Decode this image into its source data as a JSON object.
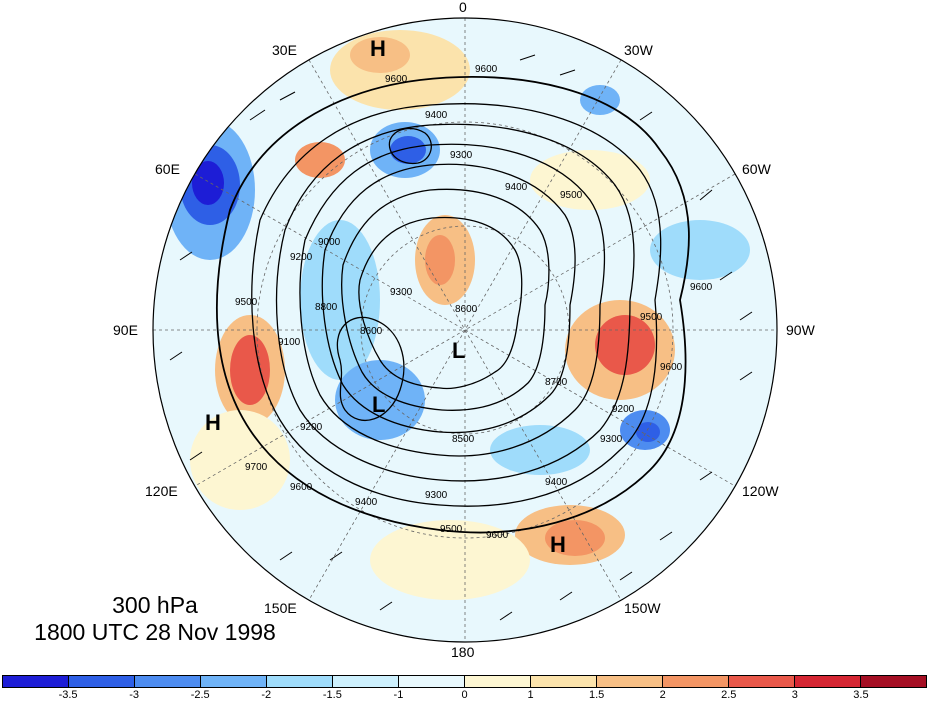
{
  "caption": {
    "level": "300 hPa",
    "time": "1800 UTC 28 Nov 1998"
  },
  "longitude_labels": [
    "0",
    "30W",
    "60W",
    "90W",
    "120W",
    "150W",
    "180",
    "150E",
    "120E",
    "90E",
    "60E",
    "30E"
  ],
  "pressure_systems": [
    {
      "type": "H",
      "region": "north-upper-left"
    },
    {
      "type": "H",
      "region": "left"
    },
    {
      "type": "H",
      "region": "lower-right"
    },
    {
      "type": "L",
      "region": "center"
    },
    {
      "type": "L",
      "region": "center-left"
    }
  ],
  "contour_labels": [
    "9600",
    "9600",
    "9400",
    "9300",
    "9500",
    "9400",
    "9200",
    "9000",
    "8800",
    "8600",
    "8700",
    "8500",
    "9300",
    "9400",
    "9500",
    "9600",
    "9100",
    "9300",
    "9600",
    "9200",
    "9500",
    "9600",
    "9400",
    "9500",
    "9700",
    "9600",
    "8600",
    "9200",
    "9300"
  ],
  "colorbar": {
    "tick_labels": [
      "-3.5",
      "-3",
      "-2.5",
      "-2",
      "-1.5",
      "-1",
      "0",
      "1",
      "1.5",
      "2",
      "2.5",
      "3",
      "3.5"
    ],
    "colors": [
      "#1d1dd6",
      "#2e5fe6",
      "#4d8cf0",
      "#6fb3f7",
      "#9fdcfb",
      "#cdf0fd",
      "#e8f8fd",
      "#fdf6d2",
      "#fbe3ac",
      "#f7bf85",
      "#f39564",
      "#e9584a",
      "#d52633",
      "#a50f24"
    ]
  }
}
